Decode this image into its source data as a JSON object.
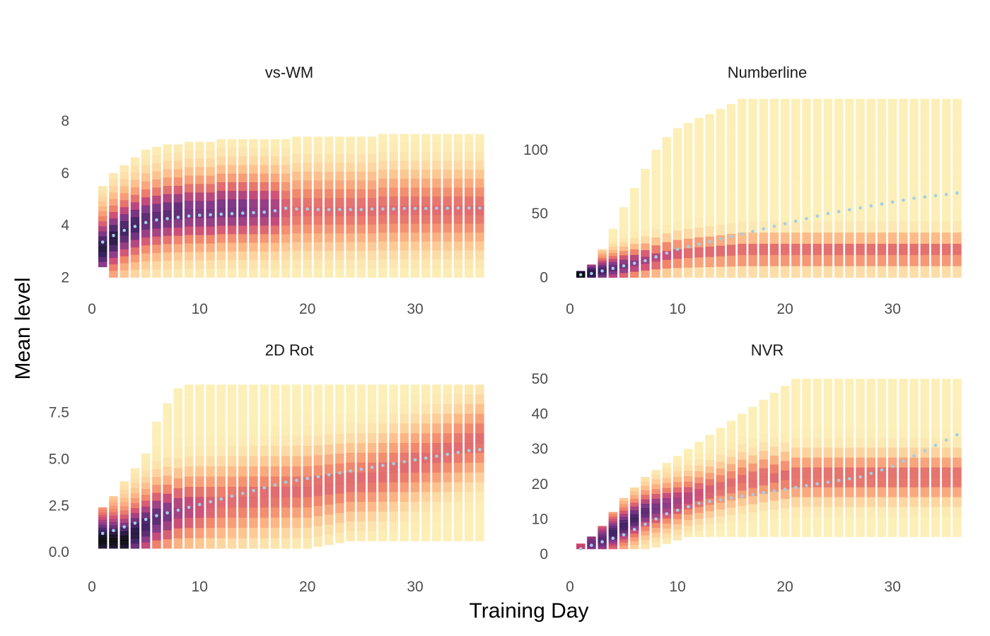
{
  "figure": {
    "xlabel": "Training Day",
    "ylabel": "Mean level",
    "colors": {
      "background": "#ffffff",
      "trend": "#9fd0e6",
      "scale_low": "#fcfdbf",
      "scale_mid1": "#fdb47c",
      "scale_mid2": "#f07a5e",
      "scale_mid3": "#c93f6d",
      "scale_high1": "#7a2a80",
      "scale_high2": "#2b1155",
      "scale_max": "#000004"
    }
  },
  "chart_data": [
    {
      "type": "scatter",
      "title": "vs-WM",
      "xlim": [
        0,
        36.5
      ],
      "ylim": [
        1.9,
        8.9
      ],
      "xticks": [
        0,
        10,
        20,
        30
      ],
      "yticks": [
        2,
        4,
        6,
        8
      ],
      "ytick_labels": [
        "2",
        "4",
        "6",
        "8"
      ],
      "grid": false,
      "days": 36,
      "point_range": {
        "min": [
          2.4,
          2.0,
          2.0,
          2.0,
          2.0,
          2.0,
          2.0,
          2.0,
          2.0,
          2.0,
          2.0,
          2.0,
          2.0,
          2.0,
          2.0,
          2.0,
          2.0,
          2.0,
          2.0,
          2.0,
          2.0,
          2.0,
          2.0,
          2.0,
          2.0,
          2.0,
          2.0,
          2.0,
          2.0,
          2.0,
          2.0,
          2.0,
          2.0,
          2.0,
          2.0,
          2.0
        ],
        "max": [
          5.5,
          6.0,
          6.3,
          6.6,
          6.9,
          7.0,
          7.1,
          7.1,
          7.2,
          7.2,
          7.2,
          7.3,
          7.3,
          7.3,
          7.3,
          7.3,
          7.3,
          7.3,
          7.4,
          7.4,
          7.4,
          7.4,
          7.4,
          7.4,
          7.4,
          7.4,
          7.5,
          7.5,
          7.5,
          7.5,
          7.5,
          7.5,
          7.5,
          7.5,
          7.5,
          7.5
        ]
      },
      "density_peak": {
        "center": [
          3.1,
          3.5,
          3.8,
          4.0,
          4.2,
          4.3,
          4.4,
          4.5,
          4.5,
          4.5,
          4.5,
          4.6,
          4.6,
          4.6,
          4.6,
          4.6,
          4.6,
          4.6,
          4.6,
          4.6,
          4.6,
          4.6,
          4.6,
          4.6,
          4.6,
          4.6,
          4.6,
          4.6,
          4.6,
          4.6,
          4.6,
          4.6,
          4.6,
          4.6,
          4.6,
          4.6
        ],
        "spread": 0.9,
        "intensity": [
          0.95,
          0.95,
          0.9,
          0.9,
          0.85,
          0.85,
          0.85,
          0.85,
          0.8,
          0.8,
          0.8,
          0.8,
          0.8,
          0.8,
          0.75,
          0.75,
          0.7,
          0.55,
          0.5,
          0.5,
          0.5,
          0.5,
          0.5,
          0.5,
          0.5,
          0.5,
          0.5,
          0.5,
          0.5,
          0.5,
          0.5,
          0.5,
          0.5,
          0.5,
          0.5,
          0.5
        ]
      },
      "trend": {
        "x": [
          1,
          2,
          3,
          4,
          5,
          6,
          7,
          8,
          9,
          10,
          11,
          12,
          13,
          14,
          15,
          16,
          17,
          18,
          19,
          20,
          21,
          22,
          23,
          24,
          25,
          26,
          27,
          28,
          29,
          30,
          31,
          32,
          33,
          34,
          35,
          36
        ],
        "y": [
          3.35,
          3.6,
          3.8,
          3.95,
          4.1,
          4.2,
          4.25,
          4.3,
          4.35,
          4.38,
          4.4,
          4.42,
          4.44,
          4.46,
          4.48,
          4.5,
          4.55,
          4.65,
          4.62,
          4.62,
          4.6,
          4.6,
          4.6,
          4.6,
          4.6,
          4.62,
          4.62,
          4.62,
          4.64,
          4.64,
          4.64,
          4.65,
          4.65,
          4.66,
          4.66,
          4.66
        ]
      }
    },
    {
      "type": "scatter",
      "title": "Numberline",
      "xlim": [
        0,
        36.5
      ],
      "ylim": [
        -2,
        141
      ],
      "xticks": [
        0,
        10,
        20,
        30
      ],
      "yticks": [
        0,
        50,
        100
      ],
      "ytick_labels": [
        "0",
        "50",
        "100"
      ],
      "grid": false,
      "days": 36,
      "point_range": {
        "min": [
          0.0,
          0.0,
          0.0,
          0.0,
          0.0,
          0.0,
          0.0,
          0.0,
          0.0,
          0.0,
          0.0,
          0.0,
          0.0,
          0.0,
          0.0,
          0.0,
          0.0,
          0.0,
          0.0,
          0.0,
          0.0,
          0.0,
          0.0,
          0.0,
          0.0,
          0.0,
          0.0,
          0.0,
          0.0,
          0.0,
          0.0,
          0.0,
          0.0,
          0.0,
          0.0,
          0.0
        ],
        "max": [
          5.0,
          10.0,
          22.0,
          38.0,
          55.0,
          70.0,
          85.0,
          100.0,
          110.0,
          117.0,
          121.0,
          125.0,
          128.0,
          132.0,
          136.0,
          140.0,
          140.0,
          140.0,
          140.0,
          140.0,
          140.0,
          140.0,
          140.0,
          140.0,
          140.0,
          140.0,
          140.0,
          140.0,
          140.0,
          140.0,
          140.0,
          140.0,
          140.0,
          140.0,
          140.0,
          140.0
        ]
      },
      "density_peak": {
        "center": [
          2.0,
          3.0,
          5.0,
          7.0,
          9.0,
          11.0,
          13.0,
          15.0,
          17.0,
          18.0,
          19.0,
          20.0,
          20.0,
          20.0,
          20.0,
          20.0,
          20.0,
          20.0,
          20.0,
          20.0,
          20.0,
          20.0,
          20.0,
          20.0,
          20.0,
          20.0,
          20.0,
          20.0,
          20.0,
          20.0,
          20.0,
          20.0,
          20.0,
          20.0,
          20.0,
          20.0
        ],
        "spread": 8,
        "intensity": [
          1.0,
          0.95,
          0.9,
          0.85,
          0.8,
          0.75,
          0.7,
          0.65,
          0.6,
          0.55,
          0.5,
          0.5,
          0.5,
          0.5,
          0.5,
          0.5,
          0.5,
          0.5,
          0.5,
          0.5,
          0.5,
          0.5,
          0.5,
          0.5,
          0.5,
          0.5,
          0.5,
          0.5,
          0.5,
          0.5,
          0.5,
          0.5,
          0.5,
          0.5,
          0.5,
          0.5
        ]
      },
      "trend": {
        "x": [
          1,
          2,
          3,
          4,
          5,
          6,
          7,
          8,
          9,
          10,
          11,
          12,
          13,
          14,
          15,
          16,
          17,
          18,
          19,
          20,
          21,
          22,
          23,
          24,
          25,
          26,
          27,
          28,
          29,
          30,
          31,
          32,
          33,
          34,
          35,
          36
        ],
        "y": [
          2,
          3,
          5,
          7,
          9,
          11,
          13,
          16,
          19,
          22,
          24,
          26,
          28,
          30,
          32,
          34,
          36,
          38,
          40,
          42,
          44,
          46,
          48,
          50,
          51.5,
          53,
          54.5,
          56,
          57.5,
          59,
          60.5,
          62,
          63,
          64,
          65,
          66
        ]
      }
    },
    {
      "type": "scatter",
      "title": "2D Rot",
      "xlim": [
        0,
        36.5
      ],
      "ylim": [
        -0.3,
        9.5
      ],
      "xticks": [
        0,
        10,
        20,
        30
      ],
      "yticks": [
        0.0,
        2.5,
        5.0,
        7.5
      ],
      "ytick_labels": [
        "0.0",
        "2.5",
        "5.0",
        "7.5"
      ],
      "grid": false,
      "days": 36,
      "point_range": {
        "min": [
          0.2,
          0.2,
          0.2,
          0.2,
          0.2,
          0.2,
          0.2,
          0.2,
          0.2,
          0.2,
          0.2,
          0.2,
          0.2,
          0.2,
          0.2,
          0.2,
          0.2,
          0.2,
          0.2,
          0.2,
          0.3,
          0.4,
          0.5,
          0.6,
          0.6,
          0.6,
          0.6,
          0.6,
          0.6,
          0.6,
          0.6,
          0.6,
          0.6,
          0.6,
          0.6,
          0.6
        ],
        "max": [
          2.4,
          3.0,
          3.8,
          4.5,
          5.3,
          7.0,
          8.0,
          8.8,
          9.0,
          9.0,
          9.0,
          9.0,
          9.0,
          9.0,
          9.0,
          9.0,
          9.0,
          9.0,
          9.0,
          9.0,
          9.0,
          9.0,
          9.0,
          9.0,
          9.0,
          9.0,
          9.0,
          9.0,
          9.0,
          9.0,
          9.0,
          9.0,
          9.0,
          9.0,
          9.0,
          9.0
        ]
      },
      "density_peak": {
        "center": [
          0.6,
          0.6,
          0.6,
          1.0,
          1.4,
          1.8,
          2.0,
          2.2,
          2.3,
          2.4,
          2.5,
          2.6,
          2.7,
          2.8,
          2.9,
          3.0,
          3.1,
          3.2,
          3.3,
          3.4,
          3.5,
          3.6,
          3.7,
          3.8,
          3.9,
          4.0,
          4.2,
          4.4,
          4.6,
          4.8,
          5.0,
          5.2,
          5.4,
          5.6,
          5.8,
          6.0
        ],
        "spread": 1.2,
        "intensity": [
          1.0,
          1.0,
          1.0,
          0.95,
          0.9,
          0.85,
          0.8,
          0.7,
          0.65,
          0.6,
          0.55,
          0.5,
          0.5,
          0.5,
          0.5,
          0.5,
          0.5,
          0.5,
          0.5,
          0.5,
          0.5,
          0.5,
          0.5,
          0.5,
          0.5,
          0.5,
          0.5,
          0.5,
          0.5,
          0.5,
          0.5,
          0.5,
          0.5,
          0.5,
          0.5,
          0.5
        ]
      },
      "trend": {
        "x": [
          1,
          2,
          3,
          4,
          5,
          6,
          7,
          8,
          9,
          10,
          11,
          12,
          13,
          14,
          15,
          16,
          17,
          18,
          19,
          20,
          21,
          22,
          23,
          24,
          25,
          26,
          27,
          28,
          29,
          30,
          31,
          32,
          33,
          34,
          35,
          36
        ],
        "y": [
          1.0,
          1.15,
          1.35,
          1.55,
          1.75,
          1.95,
          2.1,
          2.25,
          2.4,
          2.55,
          2.7,
          2.85,
          3.0,
          3.15,
          3.3,
          3.45,
          3.6,
          3.75,
          3.85,
          3.95,
          4.05,
          4.15,
          4.25,
          4.35,
          4.45,
          4.55,
          4.65,
          4.75,
          4.85,
          4.95,
          5.05,
          5.15,
          5.25,
          5.35,
          5.45,
          5.5
        ]
      }
    },
    {
      "type": "scatter",
      "title": "NVR",
      "xlim": [
        0,
        36.5
      ],
      "ylim": [
        -1,
        51
      ],
      "xticks": [
        0,
        10,
        20,
        30
      ],
      "yticks": [
        0,
        10,
        20,
        30,
        40,
        50
      ],
      "ytick_labels": [
        "0",
        "10",
        "20",
        "30",
        "40",
        "50"
      ],
      "grid": false,
      "days": 36,
      "point_range": {
        "min": [
          1.5,
          1.5,
          1.5,
          1.5,
          1.5,
          1.5,
          1.5,
          2.0,
          3.0,
          4.0,
          5.0,
          5.0,
          5.0,
          5.0,
          5.0,
          5.0,
          5.0,
          5.0,
          5.0,
          5.0,
          5.0,
          5.0,
          5.0,
          5.0,
          5.0,
          5.0,
          5.0,
          5.0,
          5.0,
          5.0,
          5.0,
          5.0,
          5.0,
          5.0,
          5.0,
          5.0
        ],
        "max": [
          3.0,
          5.0,
          8.0,
          12.0,
          16.0,
          19.0,
          22.0,
          24.0,
          26.0,
          28.0,
          30.0,
          32.0,
          34.0,
          36.0,
          38.0,
          40.0,
          42.0,
          44.0,
          46.0,
          48.0,
          50.0,
          50.0,
          50.0,
          50.0,
          50.0,
          50.0,
          50.0,
          50.0,
          50.0,
          50.0,
          50.0,
          50.0,
          50.0,
          50.0,
          50.0,
          50.0
        ]
      },
      "density_peak": {
        "center": [
          2.0,
          3.0,
          4.0,
          6.0,
          8.0,
          10.0,
          12.0,
          13.0,
          14.0,
          15.0,
          16.0,
          17.0,
          18.0,
          19.0,
          20.0,
          21.0,
          21.0,
          22.0,
          22.0,
          22.0,
          22.0,
          22.0,
          22.0,
          22.0,
          22.0,
          22.0,
          22.0,
          22.0,
          22.0,
          22.0,
          22.0,
          22.0,
          22.0,
          22.0,
          22.0,
          22.0
        ],
        "spread": 4,
        "intensity": [
          0.6,
          0.8,
          0.85,
          0.9,
          0.9,
          0.9,
          0.85,
          0.8,
          0.75,
          0.7,
          0.65,
          0.6,
          0.55,
          0.5,
          0.5,
          0.5,
          0.5,
          0.5,
          0.5,
          0.5,
          0.5,
          0.5,
          0.5,
          0.5,
          0.5,
          0.5,
          0.5,
          0.5,
          0.5,
          0.5,
          0.5,
          0.5,
          0.5,
          0.5,
          0.5,
          0.5
        ]
      },
      "trend": {
        "x": [
          1,
          2,
          3,
          4,
          5,
          6,
          7,
          8,
          9,
          10,
          11,
          12,
          13,
          14,
          15,
          16,
          17,
          18,
          19,
          20,
          21,
          22,
          23,
          24,
          25,
          26,
          27,
          28,
          29,
          30,
          31,
          32,
          33,
          34,
          35,
          36
        ],
        "y": [
          1.5,
          2.5,
          3.5,
          4.5,
          5.5,
          7.0,
          8.5,
          10.0,
          11.5,
          12.5,
          13.5,
          14.5,
          15.0,
          15.5,
          16.0,
          16.5,
          17.0,
          17.5,
          18.0,
          18.5,
          19.0,
          19.5,
          20.0,
          20.5,
          21.0,
          21.5,
          22.0,
          23.0,
          24.0,
          25.0,
          26.5,
          28.0,
          29.5,
          31.0,
          32.5,
          34.0
        ]
      }
    }
  ]
}
